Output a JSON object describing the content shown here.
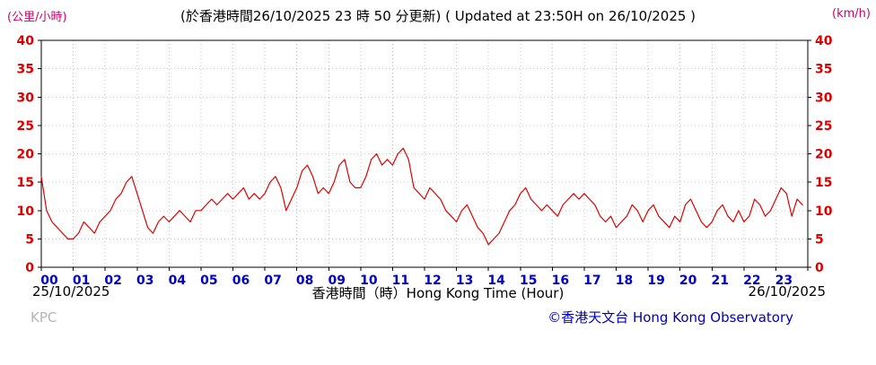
{
  "header": {
    "unit_left": "(公里/小時)",
    "title": "(於香港時間26/10/2025 23 時 50 分更新) ( Updated at 23:50H on 26/10/2025 )",
    "unit_right": "(km/h)"
  },
  "footer": {
    "date_left": "25/10/2025",
    "xaxis_label": "香港時間（時）Hong Kong Time (Hour)",
    "date_right": "26/10/2025",
    "watermark": "KPC",
    "copyright": "©香港天文台 Hong Kong Observatory"
  },
  "colors": {
    "line": "#e00000",
    "ytick_label": "#dd0000",
    "xtick_label": "#0000cc",
    "grid": "#c4c4c4",
    "border": "#000000"
  },
  "chart_data": {
    "type": "line",
    "series_name": "wind speed (km/h)",
    "title": "(於香港時間26/10/2025 23 時 50 分更新) ( Updated at 23:50H on 26/10/2025 )",
    "xlabel": "香港時間（時）Hong Kong Time (Hour)",
    "ylabel_left": "(公里/小時)",
    "ylabel_right": "(km/h)",
    "ylim": [
      0,
      40
    ],
    "yticks": [
      0,
      5,
      10,
      15,
      20,
      25,
      30,
      35,
      40
    ],
    "xticks": [
      "00",
      "01",
      "02",
      "03",
      "04",
      "05",
      "06",
      "07",
      "08",
      "09",
      "10",
      "11",
      "12",
      "13",
      "14",
      "15",
      "16",
      "17",
      "18",
      "19",
      "20",
      "21",
      "22",
      "23"
    ],
    "grid": "dotted",
    "start_hour": 0,
    "interval_minutes": 10,
    "values": [
      16,
      10,
      8,
      7,
      6,
      5,
      5,
      6,
      8,
      7,
      6,
      8,
      9,
      10,
      12,
      13,
      15,
      16,
      13,
      10,
      7,
      6,
      8,
      9,
      8,
      9,
      10,
      9,
      8,
      10,
      10,
      11,
      12,
      11,
      12,
      13,
      12,
      13,
      14,
      12,
      13,
      12,
      13,
      15,
      16,
      14,
      10,
      12,
      14,
      17,
      18,
      16,
      13,
      14,
      13,
      15,
      18,
      19,
      15,
      14,
      14,
      16,
      19,
      20,
      18,
      19,
      18,
      20,
      21,
      19,
      14,
      13,
      12,
      14,
      13,
      12,
      10,
      9,
      8,
      10,
      11,
      9,
      7,
      6,
      4,
      5,
      6,
      8,
      10,
      11,
      13,
      14,
      12,
      11,
      10,
      11,
      10,
      9,
      11,
      12,
      13,
      12,
      13,
      12,
      11,
      9,
      8,
      9,
      7,
      8,
      9,
      11,
      10,
      8,
      10,
      11,
      9,
      8,
      7,
      9,
      8,
      11,
      12,
      10,
      8,
      7,
      8,
      10,
      11,
      9,
      8,
      10,
      8,
      9,
      12,
      11,
      9,
      10,
      12,
      14,
      13,
      9,
      12,
      11
    ]
  }
}
